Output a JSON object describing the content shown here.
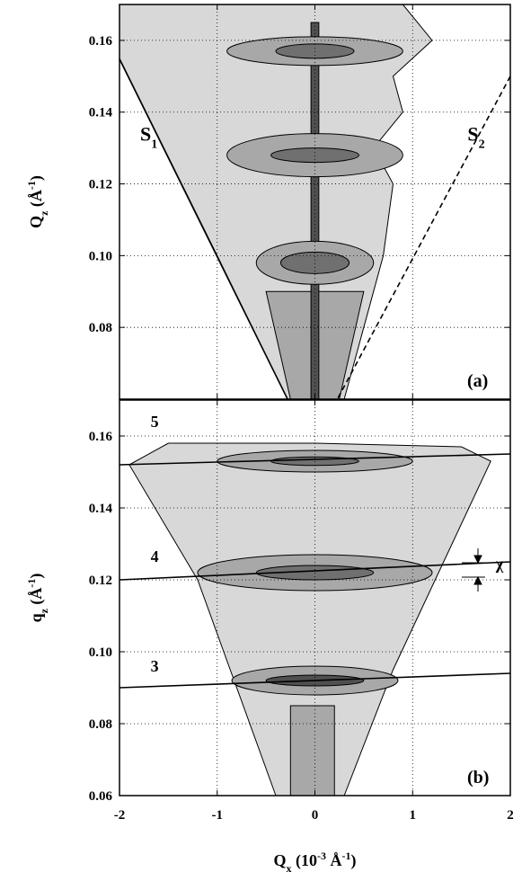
{
  "chart_data": [
    {
      "type": "contour",
      "panel_label": "(a)",
      "ylabel": [
        {
          "text": "Q"
        },
        {
          "text": "z",
          "shift": "sub"
        },
        {
          "text": " ("
        },
        {
          "text": "Å"
        },
        {
          "text": "-1",
          "shift": "sup"
        },
        {
          "text": ")"
        }
      ],
      "xlim": [
        -2,
        2
      ],
      "xticks": [
        -2,
        -1,
        0,
        1,
        2
      ],
      "ylim": [
        0.06,
        0.17
      ],
      "yticks": [
        0.08,
        {
          "value": 0.1,
          "label": "0.10"
        },
        0.12,
        0.14,
        0.16
      ],
      "grid": true,
      "regions": [
        {
          "color": "#d8d8d8",
          "x": [
            -2,
            0.9,
            1.2,
            0.8,
            0.9,
            0.6,
            0.8,
            0.7,
            0.5,
            0.3,
            -0.28,
            -1.0,
            -2
          ],
          "y": [
            0.17,
            0.17,
            0.16,
            0.15,
            0.14,
            0.13,
            0.12,
            0.1,
            0.08,
            0.06,
            0.06,
            0.1,
            0.155
          ]
        },
        {
          "color": "#a8a8a8",
          "x": [
            -0.5,
            0.5,
            0.25,
            -0.25
          ],
          "y": [
            0.09,
            0.09,
            0.06,
            0.06
          ]
        },
        {
          "color": "#505050",
          "x": [
            -0.04,
            0.04,
            0.04,
            -0.04
          ],
          "y": [
            0.06,
            0.06,
            0.165,
            0.165
          ]
        }
      ],
      "ellipses": [
        {
          "color": "#a8a8a8",
          "cx": 0,
          "cy": 0.157,
          "rx": 0.9,
          "ry": 0.004
        },
        {
          "color": "#707070",
          "cx": 0,
          "cy": 0.157,
          "rx": 0.4,
          "ry": 0.002
        },
        {
          "color": "#a8a8a8",
          "cx": 0,
          "cy": 0.128,
          "rx": 0.9,
          "ry": 0.006
        },
        {
          "color": "#707070",
          "cx": 0,
          "cy": 0.128,
          "rx": 0.45,
          "ry": 0.002
        },
        {
          "color": "#a8a8a8",
          "cx": 0,
          "cy": 0.098,
          "rx": 0.6,
          "ry": 0.006
        },
        {
          "color": "#707070",
          "cx": 0,
          "cy": 0.098,
          "rx": 0.35,
          "ry": 0.003
        }
      ],
      "lines": [
        {
          "dash": false,
          "x": [
            -2,
            -0.28
          ],
          "y": [
            0.1548,
            0.06
          ]
        },
        {
          "dash": true,
          "x": [
            2,
            0.23
          ],
          "y": [
            0.15,
            0.06
          ]
        }
      ],
      "annotations": [
        {
          "text": "S",
          "sub": "1",
          "x": -1.7,
          "y": 0.132
        },
        {
          "text": "S",
          "sub": "2",
          "x": 1.65,
          "y": 0.132
        }
      ]
    },
    {
      "type": "contour",
      "panel_label": "(b)",
      "ylabel": [
        {
          "text": "q"
        },
        {
          "text": "z",
          "shift": "sub"
        },
        {
          "text": " ("
        },
        {
          "text": "Å"
        },
        {
          "text": "-1",
          "shift": "sup"
        },
        {
          "text": ")"
        }
      ],
      "xlabel": [
        {
          "text": "Q"
        },
        {
          "text": "x",
          "shift": "sub"
        },
        {
          "text": " (10"
        },
        {
          "text": "-3",
          "shift": "sup"
        },
        {
          "text": " Å"
        },
        {
          "text": "-1",
          "shift": "sup"
        },
        {
          "text": ")"
        }
      ],
      "xlim": [
        -2,
        2
      ],
      "xticks": [
        -2,
        -1,
        0,
        1,
        2
      ],
      "ylim": [
        0.06,
        0.17
      ],
      "yticks": [
        0.06,
        0.08,
        {
          "value": 0.1,
          "label": "0.10"
        },
        0.12,
        0.14,
        0.16
      ],
      "grid": true,
      "regions": [
        {
          "color": "#d8d8d8",
          "x": [
            -1.9,
            -1.5,
            0,
            1.5,
            1.8,
            1.3,
            0.8,
            0.3,
            -0.4,
            -1.2
          ],
          "y": [
            0.152,
            0.158,
            0.158,
            0.157,
            0.153,
            0.124,
            0.095,
            0.06,
            0.06,
            0.12
          ]
        },
        {
          "color": "#a8a8a8",
          "x": [
            -0.25,
            0.2,
            0.2,
            -0.25
          ],
          "y": [
            0.06,
            0.06,
            0.085,
            0.085
          ]
        }
      ],
      "ellipses": [
        {
          "color": "#a8a8a8",
          "cx": 0,
          "cy": 0.153,
          "rx": 1.0,
          "ry": 0.003
        },
        {
          "color": "#707070",
          "cx": 0,
          "cy": 0.153,
          "rx": 0.45,
          "ry": 0.0012
        },
        {
          "color": "#a8a8a8",
          "cx": 0,
          "cy": 0.122,
          "rx": 1.2,
          "ry": 0.005
        },
        {
          "color": "#707070",
          "cx": 0,
          "cy": 0.122,
          "rx": 0.6,
          "ry": 0.002
        },
        {
          "color": "#a8a8a8",
          "cx": 0,
          "cy": 0.092,
          "rx": 0.85,
          "ry": 0.004
        },
        {
          "color": "#505050",
          "cx": 0,
          "cy": 0.092,
          "rx": 0.5,
          "ry": 0.0015
        }
      ],
      "lines": [
        {
          "dash": false,
          "x": [
            -2,
            2
          ],
          "y": [
            0.152,
            0.155
          ]
        },
        {
          "dash": false,
          "x": [
            -2,
            2
          ],
          "y": [
            0.12,
            0.125
          ]
        },
        {
          "dash": false,
          "x": [
            -2,
            2
          ],
          "y": [
            0.09,
            0.094
          ]
        }
      ],
      "annotations": [
        {
          "text": "5",
          "x": -1.64,
          "y": 0.1625
        },
        {
          "text": "4",
          "x": -1.64,
          "y": 0.125
        },
        {
          "text": "3",
          "x": -1.64,
          "y": 0.0945
        },
        {
          "text": "χ",
          "x": 1.89,
          "y": 0.123
        }
      ]
    }
  ]
}
